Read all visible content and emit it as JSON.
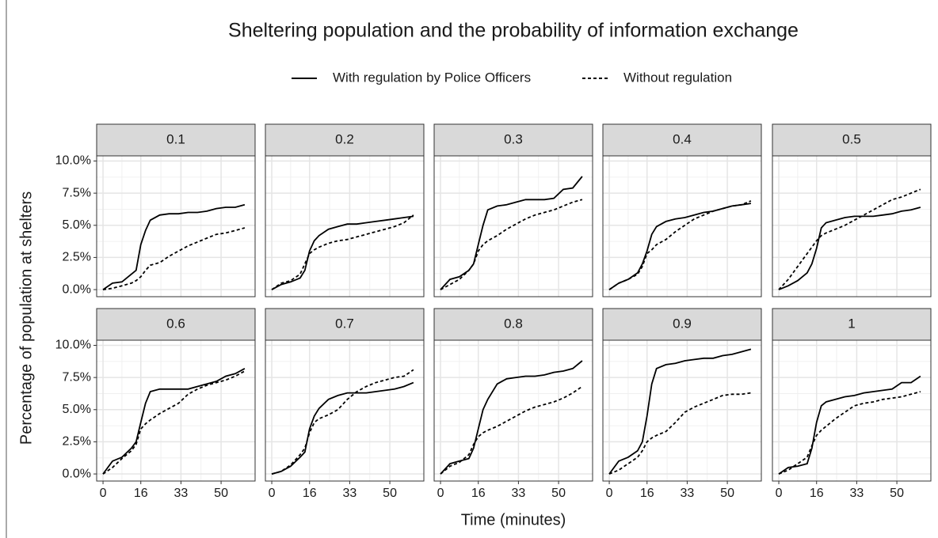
{
  "chart_data": {
    "type": "line",
    "title": "Sheltering population and the probability of information exchange",
    "xlabel": "Time (minutes)",
    "ylabel": "Percentage of population at shelters",
    "series": [
      {
        "name": "With regulation by Police Officers",
        "color": "#000000",
        "linestyle": "solid"
      },
      {
        "name": "Without regulation",
        "color": "#000000",
        "linestyle": "dashed"
      }
    ],
    "x": [
      0,
      4,
      8,
      12,
      14,
      16,
      18,
      20,
      24,
      28,
      32,
      36,
      40,
      44,
      48,
      52,
      56,
      60
    ],
    "xlim": [
      -2.7,
      64.4
    ],
    "xticks": [
      0,
      16,
      33,
      50
    ],
    "ylim": [
      -0.55,
      10.4
    ],
    "yticks": [
      {
        "value": 0,
        "label": "0.0%"
      },
      {
        "value": 2.5,
        "label": "2.5%"
      },
      {
        "value": 5,
        "label": "5.0%"
      },
      {
        "value": 7.5,
        "label": "7.5%"
      },
      {
        "value": 10,
        "label": "10.0%"
      }
    ],
    "grid": true,
    "legend": "top",
    "facets": [
      {
        "label": "0.1",
        "values": [
          [
            0,
            0.5,
            0.6,
            1.2,
            1.5,
            3.5,
            4.6,
            5.4,
            5.8,
            5.9,
            5.9,
            6.0,
            6.0,
            6.1,
            6.3,
            6.4,
            6.4,
            6.6
          ],
          [
            0,
            0.1,
            0.3,
            0.5,
            0.7,
            1.0,
            1.5,
            1.9,
            2.1,
            2.6,
            3.0,
            3.4,
            3.7,
            4.0,
            4.3,
            4.4,
            4.6,
            4.8
          ]
        ]
      },
      {
        "label": "0.2",
        "values": [
          [
            0,
            0.4,
            0.6,
            0.9,
            1.5,
            3.0,
            3.8,
            4.2,
            4.7,
            4.9,
            5.1,
            5.1,
            5.2,
            5.3,
            5.4,
            5.5,
            5.6,
            5.7
          ],
          [
            0,
            0.5,
            0.7,
            1.2,
            2.0,
            2.8,
            3.1,
            3.3,
            3.6,
            3.8,
            3.9,
            4.1,
            4.3,
            4.5,
            4.7,
            4.9,
            5.2,
            5.8
          ]
        ]
      },
      {
        "label": "0.3",
        "values": [
          [
            0,
            0.8,
            1.0,
            1.5,
            2.0,
            3.5,
            5.0,
            6.2,
            6.5,
            6.6,
            6.8,
            7.0,
            7.0,
            7.0,
            7.1,
            7.8,
            7.9,
            8.8
          ],
          [
            0,
            0.4,
            0.8,
            1.5,
            2.0,
            3.0,
            3.5,
            3.8,
            4.2,
            4.7,
            5.1,
            5.5,
            5.8,
            6.0,
            6.2,
            6.5,
            6.8,
            7.0
          ]
        ]
      },
      {
        "label": "0.4",
        "values": [
          [
            0,
            0.5,
            0.8,
            1.3,
            2.0,
            3.0,
            4.3,
            4.9,
            5.3,
            5.5,
            5.6,
            5.8,
            6.0,
            6.1,
            6.3,
            6.5,
            6.6,
            6.7
          ],
          [
            0,
            0.5,
            0.8,
            1.2,
            1.8,
            2.8,
            3.1,
            3.5,
            3.9,
            4.5,
            5.0,
            5.5,
            5.8,
            6.1,
            6.3,
            6.5,
            6.6,
            6.9
          ]
        ]
      },
      {
        "label": "0.5",
        "values": [
          [
            0,
            0.3,
            0.7,
            1.3,
            2.0,
            3.2,
            4.8,
            5.2,
            5.4,
            5.6,
            5.7,
            5.7,
            5.7,
            5.8,
            5.9,
            6.1,
            6.2,
            6.4
          ],
          [
            0,
            0.8,
            1.8,
            2.8,
            3.3,
            3.8,
            4.2,
            4.4,
            4.7,
            5.0,
            5.4,
            5.8,
            6.2,
            6.6,
            7.0,
            7.2,
            7.5,
            7.8
          ]
        ]
      },
      {
        "label": "0.6",
        "values": [
          [
            0,
            1.0,
            1.3,
            2.0,
            2.5,
            4.0,
            5.5,
            6.4,
            6.6,
            6.6,
            6.6,
            6.6,
            6.8,
            7.0,
            7.2,
            7.6,
            7.8,
            8.2
          ],
          [
            0,
            0.5,
            1.2,
            1.8,
            2.3,
            3.5,
            3.9,
            4.2,
            4.7,
            5.1,
            5.5,
            6.2,
            6.6,
            6.9,
            7.1,
            7.3,
            7.6,
            8.0
          ]
        ]
      },
      {
        "label": "0.7",
        "values": [
          [
            0,
            0.2,
            0.6,
            1.3,
            1.7,
            3.5,
            4.5,
            5.1,
            5.8,
            6.1,
            6.3,
            6.3,
            6.3,
            6.4,
            6.5,
            6.6,
            6.8,
            7.1
          ],
          [
            0,
            0.2,
            0.7,
            1.5,
            2.0,
            3.2,
            4.0,
            4.3,
            4.6,
            5.0,
            5.8,
            6.4,
            6.8,
            7.1,
            7.3,
            7.5,
            7.6,
            8.1
          ]
        ]
      },
      {
        "label": "0.8",
        "values": [
          [
            0,
            0.8,
            1.0,
            1.2,
            2.0,
            3.5,
            5.0,
            5.8,
            7.0,
            7.4,
            7.5,
            7.6,
            7.6,
            7.7,
            7.9,
            8.0,
            8.2,
            8.8
          ],
          [
            0,
            0.6,
            0.9,
            1.5,
            2.3,
            2.9,
            3.2,
            3.4,
            3.7,
            4.1,
            4.5,
            4.9,
            5.2,
            5.4,
            5.6,
            5.9,
            6.3,
            6.8
          ]
        ]
      },
      {
        "label": "0.9",
        "values": [
          [
            0,
            1.0,
            1.3,
            1.8,
            2.5,
            4.5,
            7.0,
            8.2,
            8.5,
            8.6,
            8.8,
            8.9,
            9.0,
            9.0,
            9.2,
            9.3,
            9.5,
            9.7
          ],
          [
            0,
            0.3,
            0.8,
            1.3,
            1.8,
            2.5,
            2.8,
            3.0,
            3.3,
            4.0,
            4.8,
            5.2,
            5.5,
            5.8,
            6.1,
            6.2,
            6.2,
            6.3
          ]
        ]
      },
      {
        "label": "1",
        "values": [
          [
            0,
            0.5,
            0.6,
            0.8,
            2.0,
            4.0,
            5.3,
            5.6,
            5.8,
            6.0,
            6.1,
            6.3,
            6.4,
            6.5,
            6.6,
            7.1,
            7.1,
            7.6
          ],
          [
            0,
            0.3,
            0.8,
            1.3,
            2.2,
            3.0,
            3.4,
            3.7,
            4.3,
            4.8,
            5.3,
            5.5,
            5.6,
            5.8,
            5.9,
            6.0,
            6.2,
            6.4
          ]
        ]
      }
    ]
  }
}
